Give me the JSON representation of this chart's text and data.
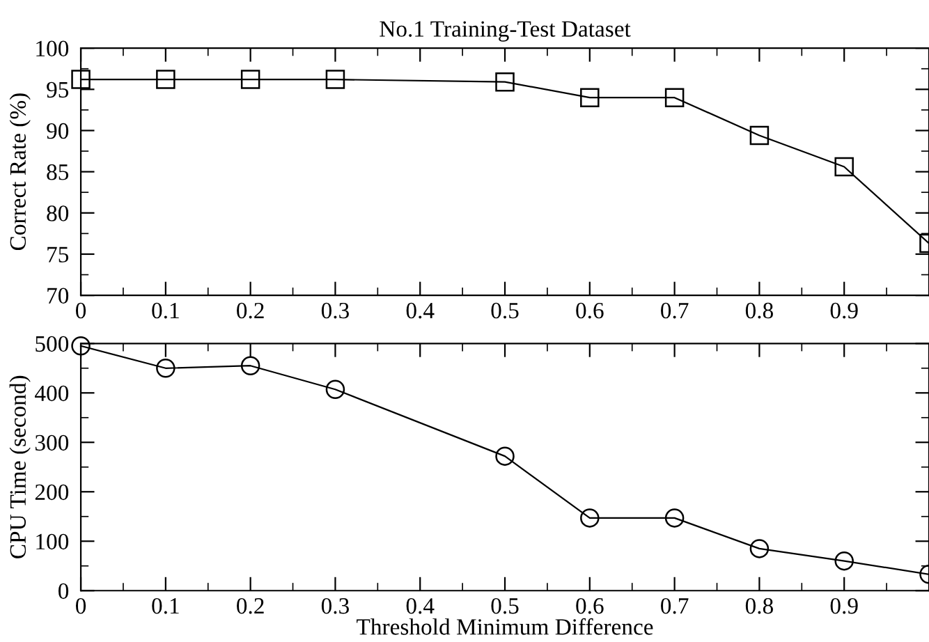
{
  "chart_data": [
    {
      "type": "line",
      "title": "No.1 Training-Test Dataset",
      "ylabel": "Correct Rate (%)",
      "marker": "square",
      "x": [
        0,
        0.1,
        0.2,
        0.3,
        0.5,
        0.6,
        0.7,
        0.8,
        0.9,
        1.0
      ],
      "series": [
        {
          "color": "#000000",
          "values": [
            96.2,
            96.2,
            96.2,
            96.2,
            95.9,
            94.0,
            94.0,
            89.4,
            85.6,
            76.3
          ]
        }
      ],
      "xlim": [
        0,
        1
      ],
      "ylim": [
        70,
        100
      ],
      "xticks": [
        0,
        {
          "value": 0.05,
          "label": null
        },
        0.1,
        {
          "value": 0.15,
          "label": null
        },
        0.2,
        {
          "value": 0.25,
          "label": null
        },
        0.3,
        {
          "value": 0.35,
          "label": null
        },
        0.4,
        {
          "value": 0.45,
          "label": null
        },
        0.5,
        {
          "value": 0.55,
          "label": null
        },
        0.6,
        {
          "value": 0.65,
          "label": null
        },
        0.7,
        {
          "value": 0.75,
          "label": null
        },
        0.8,
        {
          "value": 0.85,
          "label": null
        },
        0.9,
        {
          "value": 0.95,
          "label": null
        }
      ],
      "yticks": [
        70,
        {
          "value": 72.5,
          "label": null
        },
        75,
        {
          "value": 77.5,
          "label": null
        },
        80,
        {
          "value": 82.5,
          "label": null
        },
        85,
        {
          "value": 87.5,
          "label": null
        },
        90,
        {
          "value": 92.5,
          "label": null
        },
        95,
        {
          "value": 97.5,
          "label": null
        },
        100
      ]
    },
    {
      "type": "line",
      "xlabel": "Threshold Minimum Difference",
      "ylabel": "CPU Time (second)",
      "marker": "circle",
      "x": [
        0,
        0.1,
        0.2,
        0.3,
        0.5,
        0.6,
        0.7,
        0.8,
        0.9,
        1.0
      ],
      "series": [
        {
          "color": "#000000",
          "values": [
            495,
            450,
            455,
            407,
            272,
            147,
            147,
            85,
            60,
            33
          ]
        }
      ],
      "xlim": [
        0,
        1
      ],
      "ylim": [
        0,
        500
      ],
      "xticks": [
        0,
        {
          "value": 0.05,
          "label": null
        },
        0.1,
        {
          "value": 0.15,
          "label": null
        },
        0.2,
        {
          "value": 0.25,
          "label": null
        },
        0.3,
        {
          "value": 0.35,
          "label": null
        },
        0.4,
        {
          "value": 0.45,
          "label": null
        },
        0.5,
        {
          "value": 0.55,
          "label": null
        },
        0.6,
        {
          "value": 0.65,
          "label": null
        },
        0.7,
        {
          "value": 0.75,
          "label": null
        },
        0.8,
        {
          "value": 0.85,
          "label": null
        },
        0.9,
        {
          "value": 0.95,
          "label": null
        }
      ],
      "yticks": [
        0,
        {
          "value": 50,
          "label": null
        },
        100,
        {
          "value": 150,
          "label": null
        },
        200,
        {
          "value": 250,
          "label": null
        },
        300,
        {
          "value": 350,
          "label": null
        },
        400,
        {
          "value": 450,
          "label": null
        },
        500
      ]
    }
  ]
}
